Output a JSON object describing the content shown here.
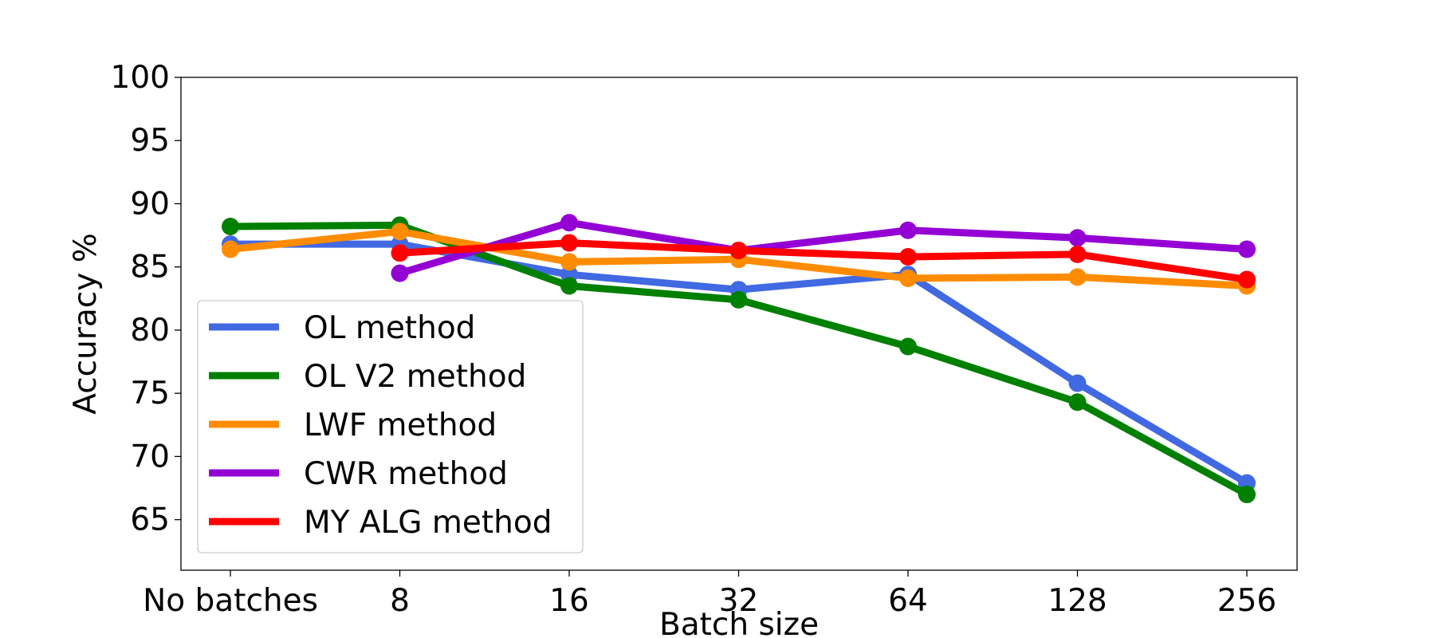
{
  "chart_data": {
    "type": "line",
    "title": "",
    "xlabel": "Batch size",
    "ylabel": "Accuracy %",
    "categories": [
      "No batches",
      "8",
      "16",
      "32",
      "64",
      "128",
      "256"
    ],
    "ylim": [
      61,
      100
    ],
    "yticks": [
      "65",
      "70",
      "75",
      "80",
      "85",
      "90",
      "95",
      "100"
    ],
    "grid": false,
    "legend": "lower-left",
    "series": [
      {
        "name": "OL method",
        "color": "#4169e1",
        "values": [
          86.8,
          86.8,
          84.4,
          83.2,
          84.4,
          75.8,
          67.9
        ]
      },
      {
        "name": "OL V2 method",
        "color": "#008000",
        "values": [
          88.2,
          88.3,
          83.5,
          82.4,
          78.7,
          74.3,
          67.0
        ]
      },
      {
        "name": "LWF method",
        "color": "#ff8c00",
        "values": [
          86.4,
          87.8,
          85.4,
          85.6,
          84.1,
          84.2,
          83.5
        ]
      },
      {
        "name": "CWR method",
        "color": "#9400d3",
        "values": [
          null,
          84.5,
          88.5,
          86.3,
          87.9,
          87.3,
          86.4
        ]
      },
      {
        "name": "MY ALG method",
        "color": "#ff0000",
        "values": [
          null,
          86.1,
          86.9,
          86.3,
          85.8,
          86.0,
          84.0
        ]
      }
    ]
  }
}
